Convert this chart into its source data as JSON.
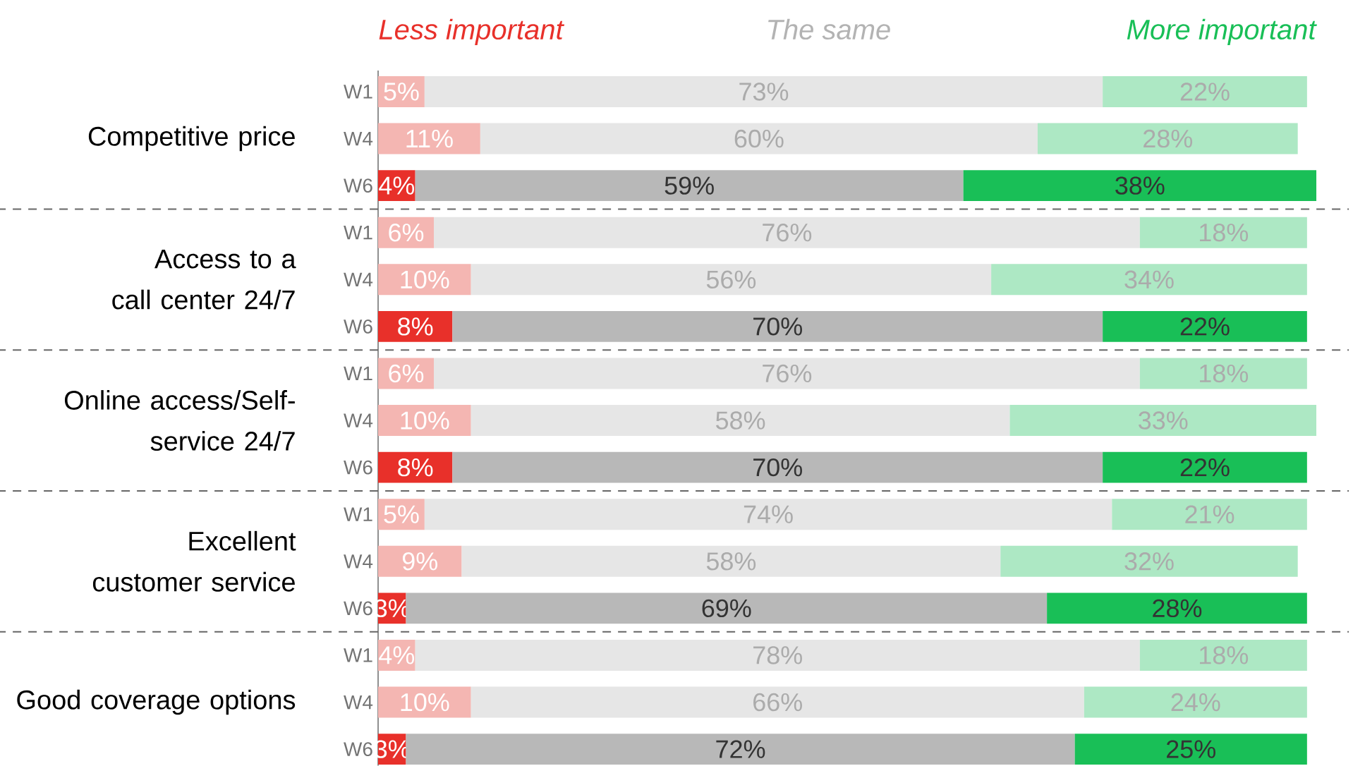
{
  "chart_data": {
    "type": "bar",
    "orientation": "horizontal",
    "stacked": true,
    "tick_labels": "y",
    "legend": "top",
    "data_labels": true,
    "categories": [
      "W1",
      "W4",
      "W6",
      "W1",
      "W4",
      "W6",
      "W1",
      "W4",
      "W6",
      "W1",
      "W4",
      "W6",
      "W1",
      "W4",
      "W6"
    ],
    "xlim": [
      0,
      101
    ],
    "annotations": [
      "Competitive price",
      "Access to a call center 24/7",
      "Online access/Self-service 24/7",
      "Excellent customer service",
      "Good coverage options"
    ],
    "series": [
      {
        "name": "Less important",
        "values": [
          5,
          11,
          4,
          6,
          10,
          8,
          6,
          10,
          8,
          5,
          9,
          3,
          4,
          10,
          3
        ],
        "value_labels": [
          "5%",
          "11%",
          "4%",
          "6%",
          "10%",
          "8%",
          "6%",
          "10%",
          "8%",
          "5%",
          "9%",
          "3%",
          "4%",
          "10%",
          "3%"
        ],
        "colors": [
          "#f4b6b2",
          "#f4b6b2",
          "#e8302a",
          "#f4b6b2",
          "#f4b6b2",
          "#e8302a",
          "#f4b6b2",
          "#f4b6b2",
          "#e8302a",
          "#f4b6b2",
          "#f4b6b2",
          "#e8302a",
          "#f4b6b2",
          "#f4b6b2",
          "#e8302a"
        ],
        "color": "#e8302a"
      },
      {
        "name": "The same",
        "values": [
          73,
          60,
          59,
          76,
          56,
          70,
          76,
          58,
          70,
          74,
          58,
          69,
          78,
          66,
          72
        ],
        "value_labels": [
          "73%",
          "60%",
          "59%",
          "76%",
          "56%",
          "70%",
          "76%",
          "58%",
          "70%",
          "74%",
          "58%",
          "69%",
          "78%",
          "66%",
          "72%"
        ],
        "colors": [
          "#e6e6e6",
          "#e6e6e6",
          "#b8b8b8",
          "#e6e6e6",
          "#e6e6e6",
          "#b8b8b8",
          "#e6e6e6",
          "#e6e6e6",
          "#b8b8b8",
          "#e6e6e6",
          "#e6e6e6",
          "#b8b8b8",
          "#e6e6e6",
          "#e6e6e6",
          "#b8b8b8"
        ],
        "color": "#b3b3b3"
      },
      {
        "name": "More important",
        "values": [
          22,
          28,
          38,
          18,
          34,
          22,
          18,
          33,
          22,
          21,
          32,
          28,
          18,
          24,
          25
        ],
        "value_labels": [
          "22%",
          "28%",
          "38%",
          "18%",
          "34%",
          "22%",
          "18%",
          "33%",
          "22%",
          "21%",
          "32%",
          "28%",
          "18%",
          "24%",
          "25%"
        ],
        "colors": [
          "#ade8c4",
          "#ade8c4",
          "#19bf57",
          "#ade8c4",
          "#ade8c4",
          "#19bf57",
          "#ade8c4",
          "#ade8c4",
          "#19bf57",
          "#ade8c4",
          "#ade8c4",
          "#19bf57",
          "#ade8c4",
          "#ade8c4",
          "#19bf57"
        ],
        "color": "#19bf57"
      }
    ]
  }
}
